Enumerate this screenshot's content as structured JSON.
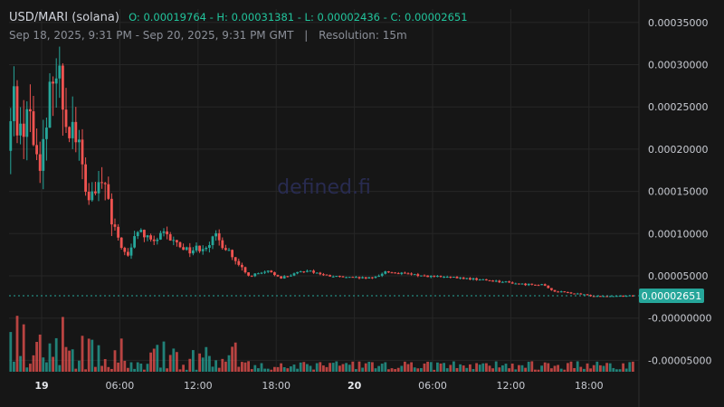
{
  "header": {
    "symbol": "USD/MARI (solana)",
    "ohlc": "O: 0.00019764 - H: 0.00031381 - L: 0.00002436 - C: 0.00002651",
    "range": "Sep 18, 2025, 9:31 PM - Sep 20, 2025, 9:31 PM GMT",
    "separator": "|",
    "resolution": "Resolution: 15m"
  },
  "watermark": "defined.fi",
  "colors": {
    "background": "#161616",
    "grid": "#262626",
    "up": "#26a69a",
    "down": "#ef5350",
    "price_line": "#26a69a",
    "price_label_bg": "#26a69a"
  },
  "chart_data": {
    "type": "candlestick",
    "y_axis": {
      "ticks": [
        0.00035,
        0.0003,
        0.00025,
        0.0002,
        0.00015,
        0.0001,
        5e-05,
        0.0,
        -5e-05
      ],
      "tick_labels": [
        "0.00035000",
        "0.00030000",
        "0.00025000",
        "0.00020000",
        "0.00015000",
        "0.00010000",
        "0.00005000",
        "-0.00000000",
        "-0.00005000"
      ],
      "range": [
        -6e-05,
        0.00037
      ]
    },
    "x_axis": {
      "tick_labels": [
        "19",
        "06:00",
        "12:00",
        "18:00",
        "20",
        "06:00",
        "12:00",
        "18:00"
      ],
      "tick_hours": [
        2.5,
        8.5,
        14.5,
        20.5,
        26.5,
        32.5,
        38.5,
        44.5
      ],
      "range_hours": [
        0,
        48
      ]
    },
    "last_price": 2.651e-05,
    "last_price_label": "0.00002651",
    "anchors": [
      [
        0,
        0.000198
      ],
      [
        0.5,
        0.00026
      ],
      [
        1.0,
        0.00022
      ],
      [
        1.5,
        0.00025
      ],
      [
        2.3,
        0.00019
      ],
      [
        3.0,
        0.00021
      ],
      [
        3.5,
        0.00031
      ],
      [
        4.0,
        0.00028
      ],
      [
        4.5,
        0.00024
      ],
      [
        5.0,
        0.00023
      ],
      [
        5.5,
        0.0002
      ],
      [
        6.0,
        0.00015
      ],
      [
        6.5,
        0.00014
      ],
      [
        7.5,
        0.00016
      ],
      [
        8.0,
        0.00011
      ],
      [
        8.5,
        9.5e-05
      ],
      [
        9.2,
        7e-05
      ],
      [
        10.0,
        0.000105
      ],
      [
        11.0,
        9e-05
      ],
      [
        12.0,
        9.8e-05
      ],
      [
        13.0,
        8.8e-05
      ],
      [
        14.0,
        8e-05
      ],
      [
        15.0,
        8.5e-05
      ],
      [
        16.0,
        9.5e-05
      ],
      [
        17.0,
        8e-05
      ],
      [
        17.5,
        6.5e-05
      ],
      [
        18.5,
        5e-05
      ],
      [
        20.0,
        5.5e-05
      ],
      [
        21.0,
        4.8e-05
      ],
      [
        22.0,
        5.2e-05
      ],
      [
        23.0,
        5.7e-05
      ],
      [
        24.5,
        5e-05
      ],
      [
        26.0,
        4.8e-05
      ],
      [
        28.0,
        4.7e-05
      ],
      [
        29.0,
        5.5e-05
      ],
      [
        30.0,
        5.3e-05
      ],
      [
        32.0,
        5e-05
      ],
      [
        34.0,
        4.8e-05
      ],
      [
        36.0,
        4.6e-05
      ],
      [
        38.0,
        4.3e-05
      ],
      [
        39.5,
        4e-05
      ],
      [
        41.0,
        4e-05
      ],
      [
        41.6,
        3.4e-05
      ],
      [
        42.0,
        3.2e-05
      ],
      [
        43.0,
        3e-05
      ],
      [
        44.0,
        2.8e-05
      ],
      [
        45.0,
        2.6e-05
      ],
      [
        48.0,
        2.65e-05
      ]
    ]
  }
}
